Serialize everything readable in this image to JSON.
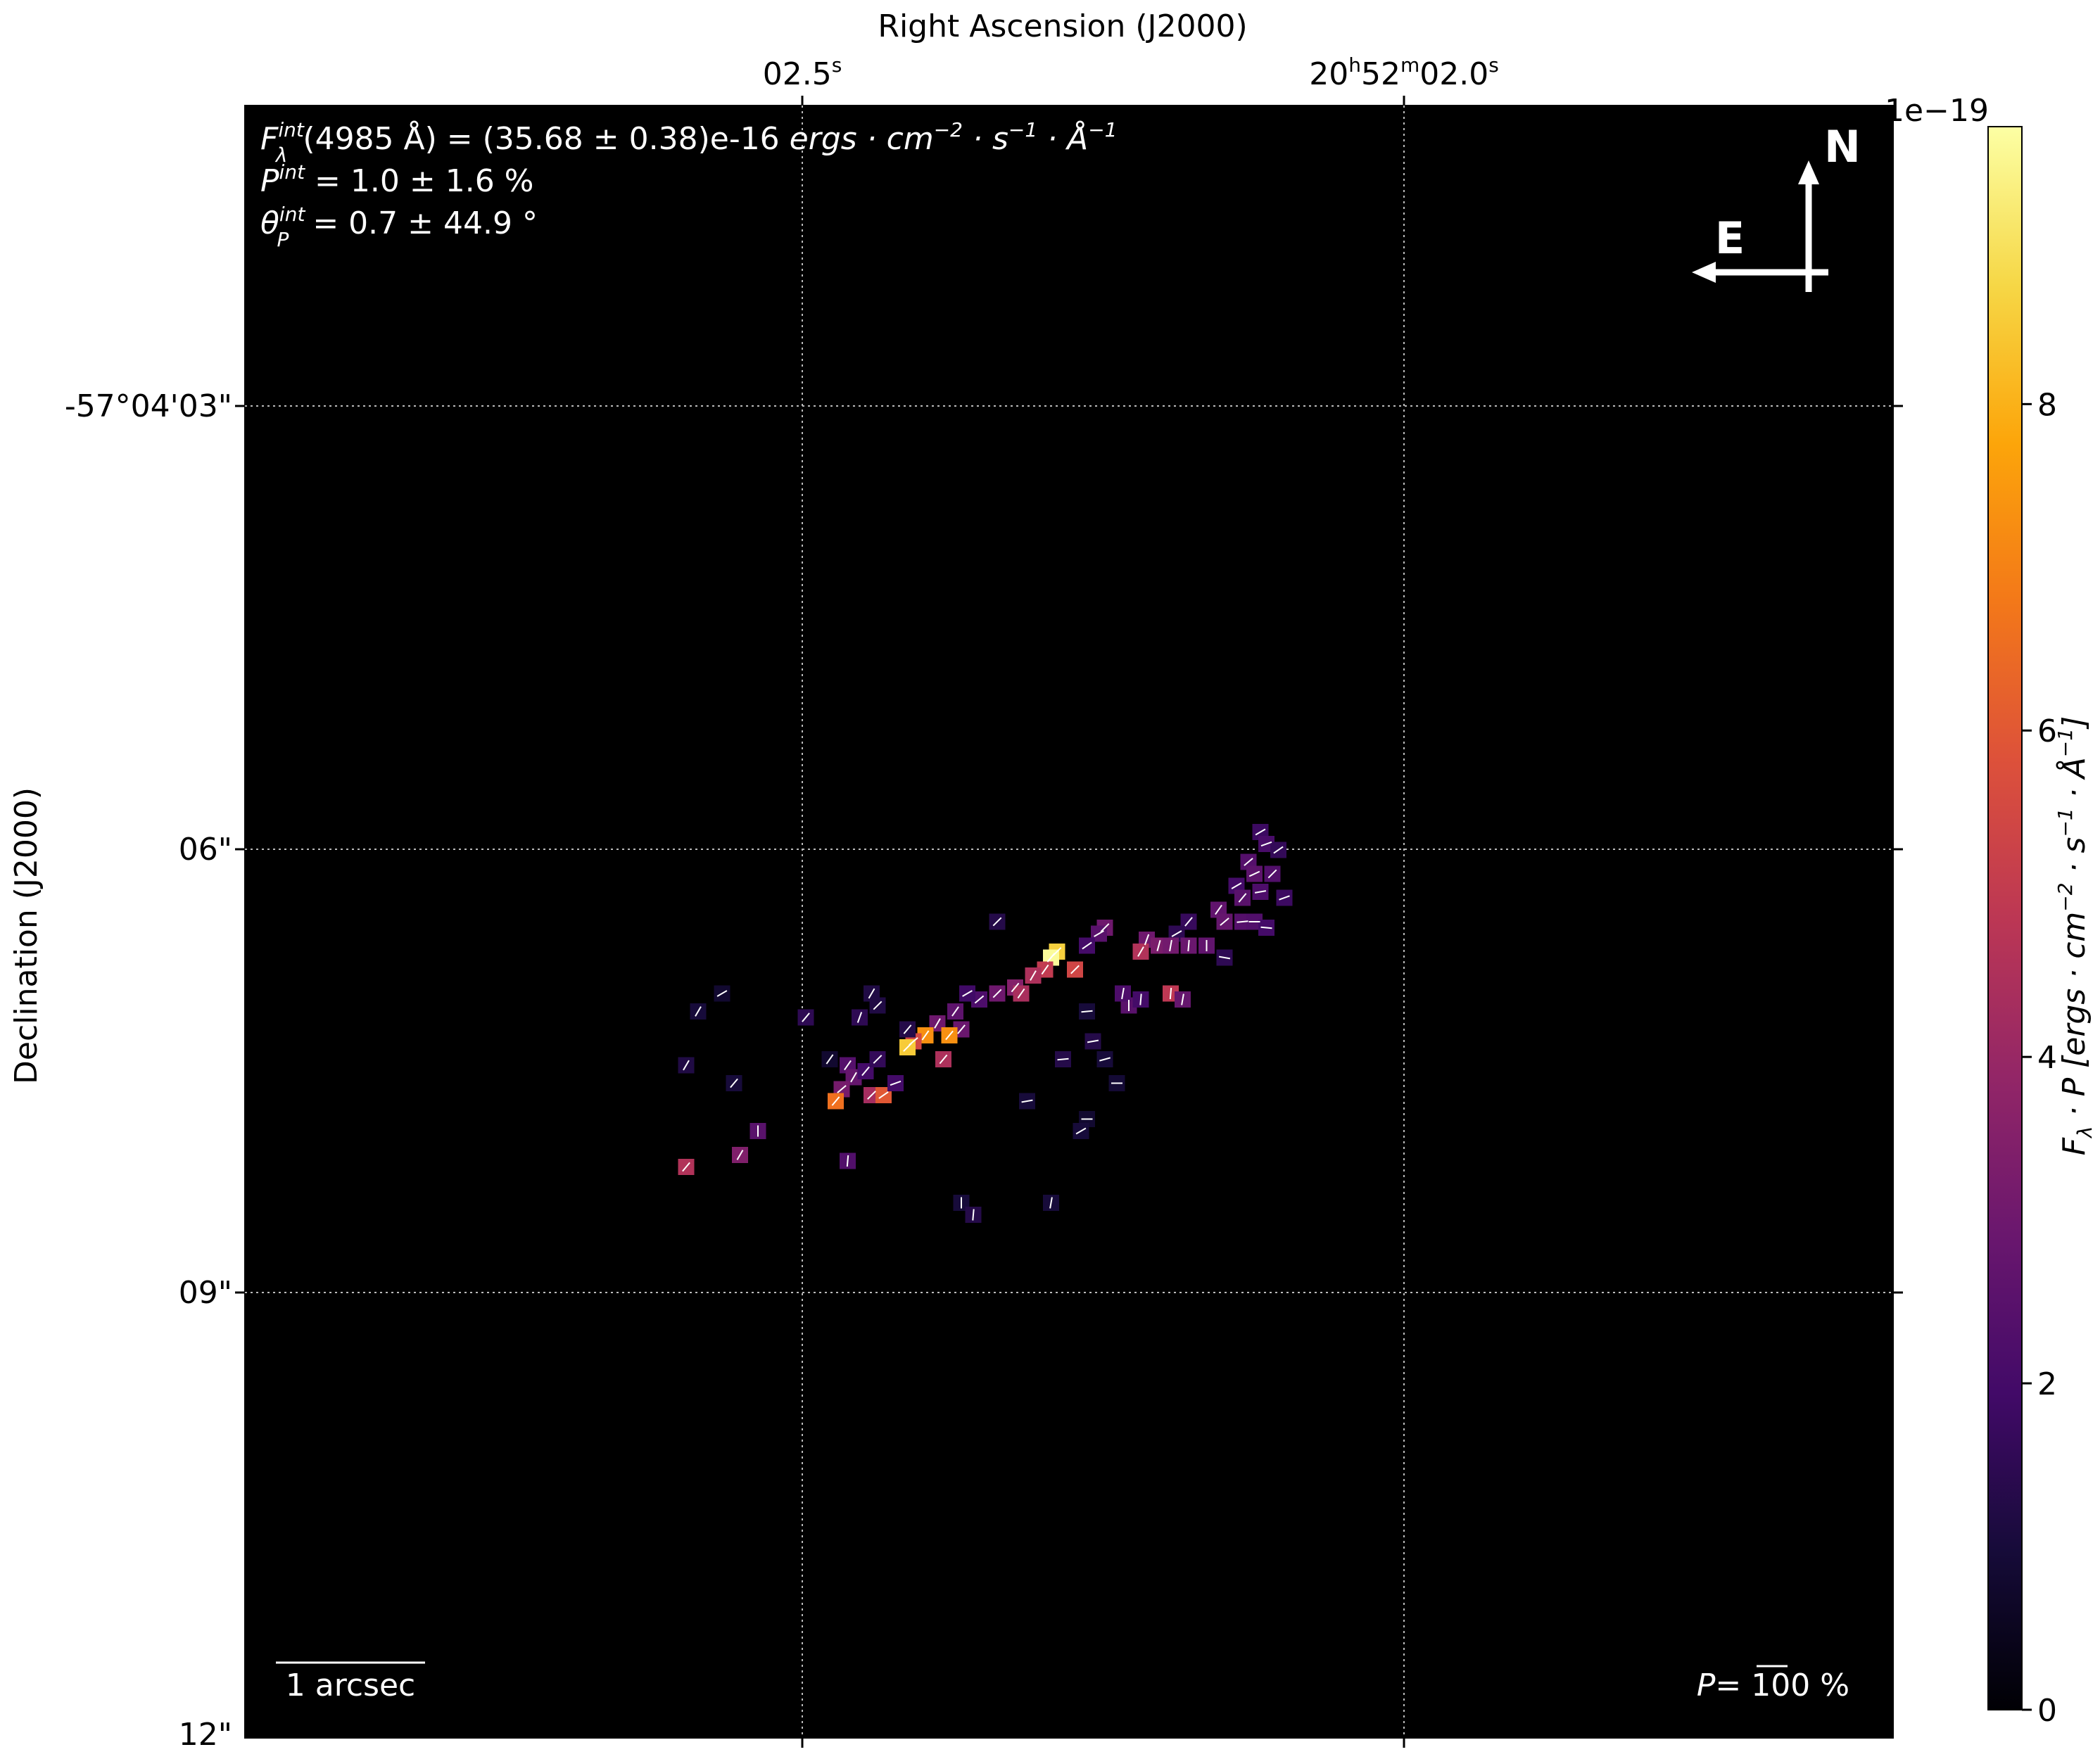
{
  "chart_data": {
    "type": "heatmap",
    "title": "",
    "xlabel": "Right Ascension (J2000)",
    "ylabel": "Declination (J2000)",
    "x_ticks": [
      {
        "label_main": "02.5",
        "sup": "s",
        "parts": []
      },
      {
        "label_main": "",
        "sup": "",
        "parts": [
          {
            "t": "20",
            "sup": false
          },
          {
            "t": "h",
            "sup": true
          },
          {
            "t": "52",
            "sup": false
          },
          {
            "t": "m",
            "sup": true
          },
          {
            "t": "02.0",
            "sup": false
          },
          {
            "t": "s",
            "sup": true
          }
        ]
      }
    ],
    "y_ticks": [
      "-57°04'03\"",
      "06\"",
      "09\"",
      "12\""
    ],
    "colorbar": {
      "label": "F_λ · P [ergs · cm⁻² · s⁻¹ · Å⁻¹]",
      "label_parts": {
        "pre": "F",
        "pre_sub": "λ",
        "mid": " · P [ergs · cm",
        "exp1": "−2",
        "mid2": " · s",
        "exp2": "−1",
        "mid3": " · Å",
        "exp3": "−1",
        "post": "]"
      },
      "offset_text": "1e−19",
      "ticks": [
        "0",
        "2",
        "4",
        "6",
        "8"
      ],
      "range": [
        0,
        9.7
      ],
      "colormap": "inferno"
    },
    "integrated": {
      "flux_line_parts": {
        "sym": "F",
        "sup": "int",
        "sub": "λ",
        "rest": "(4985 Å) = (35.68 ± 0.38)e-16 ",
        "units": "ergs · cm",
        "e1": "−2",
        "u2": " · s",
        "e2": "−1",
        "u3": " · Å",
        "e3": "−1"
      },
      "pol_line_parts": {
        "sym": "P",
        "sup": "int",
        "rest": " = 1.0 ± 1.6 %"
      },
      "angle_line_parts": {
        "sym": "θ",
        "sup": "int",
        "sub": "P",
        "rest": " = 0.7 ± 44.9 °"
      }
    },
    "compass": {
      "north": "N",
      "east": "E"
    },
    "scale_bar_label": "1 arcsec",
    "pol_scale": {
      "pre": "P= ",
      "value": "100",
      "post": " %"
    },
    "grid": true,
    "map_values": [
      {
        "x": 3.2,
        "y": -1.5,
        "v": 1.8,
        "ang": 60
      },
      {
        "x": 3.3,
        "y": -1.3,
        "v": 2.1,
        "ang": 70
      },
      {
        "x": 3.5,
        "y": -1.2,
        "v": 1.6,
        "ang": 55
      },
      {
        "x": 3.0,
        "y": -1.0,
        "v": 2.4,
        "ang": 50
      },
      {
        "x": 3.1,
        "y": -0.8,
        "v": 2.6,
        "ang": 65
      },
      {
        "x": 3.4,
        "y": -0.8,
        "v": 2.3,
        "ang": 45
      },
      {
        "x": 2.8,
        "y": -0.6,
        "v": 2.0,
        "ang": 60
      },
      {
        "x": 2.9,
        "y": -0.4,
        "v": 2.5,
        "ang": 40
      },
      {
        "x": 3.2,
        "y": -0.5,
        "v": 2.2,
        "ang": 80
      },
      {
        "x": 3.6,
        "y": -0.4,
        "v": 1.8,
        "ang": 70
      },
      {
        "x": 2.5,
        "y": -0.2,
        "v": 2.7,
        "ang": 35
      },
      {
        "x": 2.6,
        "y": 0.0,
        "v": 2.8,
        "ang": 50
      },
      {
        "x": 2.9,
        "y": 0.0,
        "v": 2.4,
        "ang": 85
      },
      {
        "x": 3.1,
        "y": 0.0,
        "v": 2.3,
        "ang": 90
      },
      {
        "x": 3.3,
        "y": 0.1,
        "v": 2.0,
        "ang": 95
      },
      {
        "x": 2.0,
        "y": 0.0,
        "v": 1.7,
        "ang": 40
      },
      {
        "x": 1.8,
        "y": 0.2,
        "v": 1.5,
        "ang": 60
      },
      {
        "x": 1.3,
        "y": 0.3,
        "v": 3.0,
        "ang": 20
      },
      {
        "x": 1.5,
        "y": 0.4,
        "v": 3.3,
        "ang": 15
      },
      {
        "x": 1.7,
        "y": 0.4,
        "v": 3.1,
        "ang": 10
      },
      {
        "x": 2.0,
        "y": 0.4,
        "v": 2.9,
        "ang": 5
      },
      {
        "x": 2.3,
        "y": 0.4,
        "v": 2.7,
        "ang": 0
      },
      {
        "x": 1.2,
        "y": 0.5,
        "v": 4.6,
        "ang": 30
      },
      {
        "x": 2.6,
        "y": 0.6,
        "v": 1.5,
        "ang": 100
      },
      {
        "x": 0.6,
        "y": 0.1,
        "v": 3.0,
        "ang": 45
      },
      {
        "x": 0.5,
        "y": 0.2,
        "v": 2.5,
        "ang": 60
      },
      {
        "x": 0.3,
        "y": 0.4,
        "v": 2.0,
        "ang": 55
      },
      {
        "x": -0.2,
        "y": 0.5,
        "v": 8.6,
        "ang": 45
      },
      {
        "x": -0.3,
        "y": 0.6,
        "v": 9.6,
        "ang": 40
      },
      {
        "x": -0.4,
        "y": 0.8,
        "v": 5.0,
        "ang": 35
      },
      {
        "x": -0.6,
        "y": 0.9,
        "v": 4.5,
        "ang": 30
      },
      {
        "x": -0.9,
        "y": 1.1,
        "v": 3.5,
        "ang": 40
      },
      {
        "x": -1.2,
        "y": 1.2,
        "v": 3.0,
        "ang": 45
      },
      {
        "x": -1.5,
        "y": 1.3,
        "v": 2.2,
        "ang": 50
      },
      {
        "x": -1.7,
        "y": 1.2,
        "v": 1.9,
        "ang": 60
      },
      {
        "x": -1.9,
        "y": 1.5,
        "v": 2.6,
        "ang": 35
      },
      {
        "x": -1.8,
        "y": 1.8,
        "v": 2.9,
        "ang": 40
      },
      {
        "x": -2.2,
        "y": 1.7,
        "v": 3.0,
        "ang": 30
      },
      {
        "x": -2.4,
        "y": 1.9,
        "v": 7.3,
        "ang": 35
      },
      {
        "x": -2.0,
        "y": 1.9,
        "v": 7.3,
        "ang": 40
      },
      {
        "x": -2.6,
        "y": 2.0,
        "v": 5.5,
        "ang": 50
      },
      {
        "x": -2.7,
        "y": 2.1,
        "v": 8.5,
        "ang": 45
      },
      {
        "x": -2.1,
        "y": 2.3,
        "v": 4.5,
        "ang": 40
      },
      {
        "x": -1.2,
        "y": 0.0,
        "v": 1.3,
        "ang": 45
      },
      {
        "x": -0.8,
        "y": 1.2,
        "v": 4.4,
        "ang": 35
      },
      {
        "x": -3.3,
        "y": 1.2,
        "v": 1.2,
        "ang": 30
      },
      {
        "x": -3.2,
        "y": 1.4,
        "v": 1.2,
        "ang": 45
      },
      {
        "x": -4.4,
        "y": 1.6,
        "v": 1.5,
        "ang": 40
      },
      {
        "x": -3.7,
        "y": 2.4,
        "v": 2.4,
        "ang": 35
      },
      {
        "x": -3.6,
        "y": 2.6,
        "v": 2.8,
        "ang": 30
      },
      {
        "x": -3.4,
        "y": 2.5,
        "v": 2.0,
        "ang": 40
      },
      {
        "x": -3.2,
        "y": 2.3,
        "v": 1.6,
        "ang": 45
      },
      {
        "x": -3.8,
        "y": 2.8,
        "v": 3.2,
        "ang": 50
      },
      {
        "x": -3.9,
        "y": 3.0,
        "v": 6.6,
        "ang": 40
      },
      {
        "x": -3.3,
        "y": 2.9,
        "v": 4.3,
        "ang": 45
      },
      {
        "x": -3.1,
        "y": 2.9,
        "v": 6.0,
        "ang": 55
      },
      {
        "x": -2.7,
        "y": 1.8,
        "v": 1.3,
        "ang": 40
      },
      {
        "x": -4.0,
        "y": 2.3,
        "v": 0.8,
        "ang": 35
      },
      {
        "x": -2.9,
        "y": 2.7,
        "v": 2.0,
        "ang": 70
      },
      {
        "x": 0.1,
        "y": 0.8,
        "v": 5.4,
        "ang": 45
      },
      {
        "x": -0.7,
        "y": 3.0,
        "v": 1.0,
        "ang": 80
      },
      {
        "x": -0.1,
        "y": 2.3,
        "v": 1.3,
        "ang": 85
      },
      {
        "x": 0.3,
        "y": 1.5,
        "v": 1.0,
        "ang": 85
      },
      {
        "x": 0.4,
        "y": 2.0,
        "v": 1.3,
        "ang": 80
      },
      {
        "x": 0.6,
        "y": 2.3,
        "v": 1.0,
        "ang": 75
      },
      {
        "x": 0.8,
        "y": 2.7,
        "v": 0.9,
        "ang": 90
      },
      {
        "x": 1.0,
        "y": 1.4,
        "v": 2.5,
        "ang": 0
      },
      {
        "x": 0.9,
        "y": 1.2,
        "v": 2.2,
        "ang": 10
      },
      {
        "x": 1.2,
        "y": 1.3,
        "v": 2.0,
        "ang": 5
      },
      {
        "x": 1.7,
        "y": 1.2,
        "v": 4.9,
        "ang": 5
      },
      {
        "x": 1.9,
        "y": 1.3,
        "v": 2.8,
        "ang": 10
      },
      {
        "x": 0.3,
        "y": 3.3,
        "v": 0.8,
        "ang": 90
      },
      {
        "x": 0.2,
        "y": 3.5,
        "v": 1.0,
        "ang": 60
      },
      {
        "x": -5.2,
        "y": 3.5,
        "v": 2.5,
        "ang": 0
      },
      {
        "x": -5.5,
        "y": 3.9,
        "v": 3.4,
        "ang": 30
      },
      {
        "x": -3.7,
        "y": 4.0,
        "v": 2.3,
        "ang": 5
      },
      {
        "x": -6.4,
        "y": 4.1,
        "v": 4.6,
        "ang": 40
      },
      {
        "x": -1.8,
        "y": 4.7,
        "v": 1.0,
        "ang": 0
      },
      {
        "x": -1.6,
        "y": 4.9,
        "v": 1.3,
        "ang": 5
      },
      {
        "x": -0.3,
        "y": 4.7,
        "v": 1.0,
        "ang": 10
      },
      {
        "x": -6.2,
        "y": 1.5,
        "v": 1.0,
        "ang": 30
      },
      {
        "x": -5.8,
        "y": 1.2,
        "v": 0.8,
        "ang": 60
      },
      {
        "x": -6.4,
        "y": 2.4,
        "v": 1.2,
        "ang": 30
      },
      {
        "x": -5.6,
        "y": 2.7,
        "v": 1.0,
        "ang": 40
      },
      {
        "x": -3.5,
        "y": 1.6,
        "v": 1.5,
        "ang": 20
      }
    ]
  }
}
